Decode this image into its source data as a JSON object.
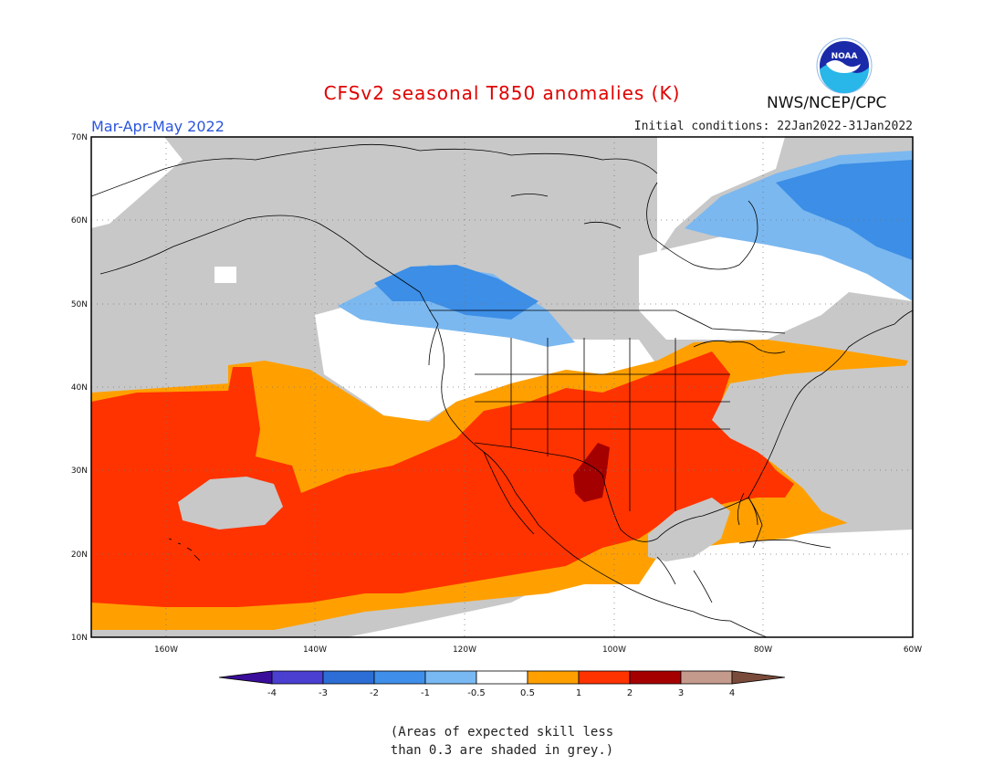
{
  "title": "CFSv2 seasonal T850 anomalies (K)",
  "period": "Mar-Apr-May 2022",
  "initial_conditions": "Initial conditions: 22Jan2022-31Jan2022",
  "agency": "NWS/NCEP/CPC",
  "logo_text": "NOAA",
  "note_line1": "(Areas of expected skill less",
  "note_line2": "than 0.3 are shaded in grey.)",
  "map": {
    "lon_range": [
      -170,
      -60
    ],
    "lat_range": [
      10,
      70
    ],
    "lat_labels": [
      "70N",
      "60N",
      "50N",
      "40N",
      "30N",
      "20N",
      "10N"
    ],
    "lon_labels": [
      "160W",
      "140W",
      "120W",
      "100W",
      "80W",
      "60W"
    ],
    "grid": "dotted"
  },
  "colorbar": {
    "labels": [
      "-4",
      "-3",
      "-2",
      "-1",
      "-0.5",
      "0.5",
      "1",
      "2",
      "3",
      "4"
    ],
    "colors": [
      "#3a0d9a",
      "#4a3fd0",
      "#2c6ed5",
      "#3f8fea",
      "#79b9f3",
      "#ffffff",
      "#ffa000",
      "#ff3300",
      "#a50000",
      "#c49a8c",
      "#7a4a3a"
    ]
  },
  "colors": {
    "grey": "#c8c8c8",
    "light_blue": "#7bb8f0",
    "blue": "#3c8ee6",
    "white": "#ffffff",
    "orange": "#ffa000",
    "red_orange": "#ff3300",
    "dark_red": "#a50000"
  }
}
